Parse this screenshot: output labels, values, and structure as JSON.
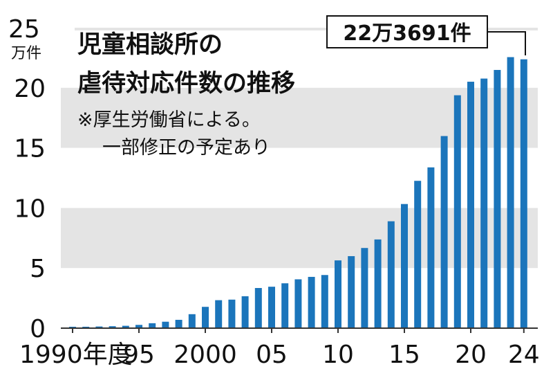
{
  "chart_data": {
    "type": "bar",
    "title_line1": "児童相談所の",
    "title_line2": "虐待対応件数の推移",
    "note_line1": "※厚生労働省による。",
    "note_line2": "一部修正の予定あり",
    "y_unit_line1": "25",
    "y_unit_line2": "万件",
    "ylim": [
      0,
      25
    ],
    "y_ticks": [
      0,
      5,
      10,
      15,
      20
    ],
    "x_tick_labels": [
      {
        "year": 1990,
        "label": "1990年度"
      },
      {
        "year": 1995,
        "label": "95"
      },
      {
        "year": 2000,
        "label": "2000"
      },
      {
        "year": 2005,
        "label": "05"
      },
      {
        "year": 2010,
        "label": "10"
      },
      {
        "year": 2015,
        "label": "15"
      },
      {
        "year": 2020,
        "label": "20"
      },
      {
        "year": 2024,
        "label": "24"
      }
    ],
    "callout": "22万3691件",
    "bar_color": "#1b75bb",
    "band_color": "#e4e4e4",
    "categories": [
      1990,
      1991,
      1992,
      1993,
      1994,
      1995,
      1996,
      1997,
      1998,
      1999,
      2000,
      2001,
      2002,
      2003,
      2004,
      2005,
      2006,
      2007,
      2008,
      2009,
      2010,
      2011,
      2012,
      2013,
      2014,
      2015,
      2016,
      2017,
      2018,
      2019,
      2020,
      2021,
      2022,
      2023,
      2024
    ],
    "values": [
      0.1101,
      0.1171,
      0.1372,
      0.1611,
      0.1961,
      0.2722,
      0.4102,
      0.5352,
      0.6932,
      1.1631,
      1.7725,
      2.3274,
      2.3738,
      2.6569,
      3.3408,
      3.4472,
      3.7323,
      4.0639,
      4.2664,
      4.4211,
      5.6384,
      5.9919,
      6.6701,
      7.3802,
      8.8931,
      10.3286,
      12.2575,
      13.3778,
      15.9838,
      19.378,
      20.5044,
      20.766,
      21.4843,
      22.5509,
      22.3691
    ]
  }
}
